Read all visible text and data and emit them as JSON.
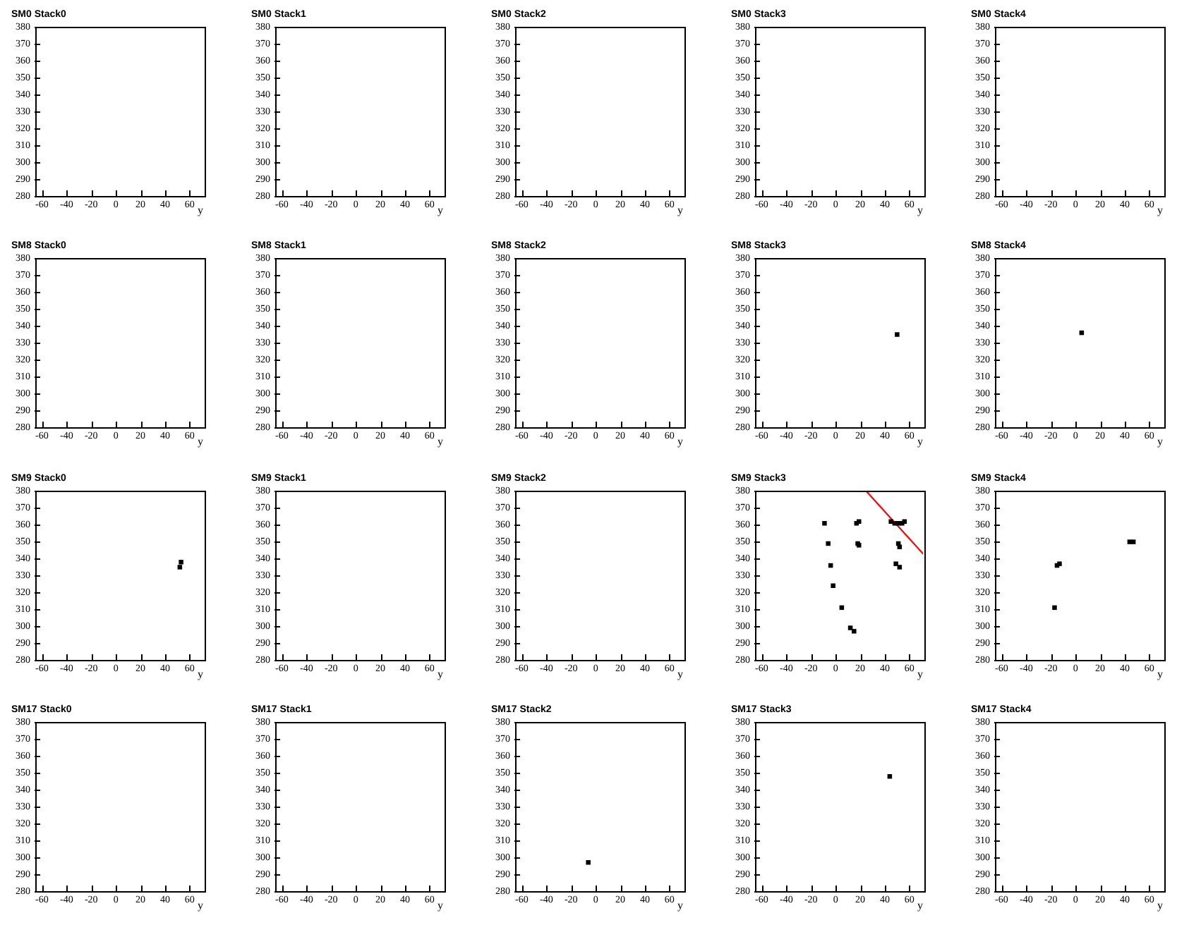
{
  "chart_data": [
    {
      "type": "scatter",
      "title": "SM0 Stack0",
      "xlabel": "y",
      "xlim": [
        -66,
        71
      ],
      "ylim": [
        280,
        380
      ],
      "xticks": [
        -60,
        -40,
        -20,
        0,
        20,
        40,
        60
      ],
      "yticks": [
        280,
        290,
        300,
        310,
        320,
        330,
        340,
        350,
        360,
        370,
        380
      ]
    },
    {
      "type": "scatter",
      "title": "SM0 Stack1",
      "xlabel": "y",
      "xlim": [
        -66,
        71
      ],
      "ylim": [
        280,
        380
      ],
      "xticks": [
        -60,
        -40,
        -20,
        0,
        20,
        40,
        60
      ],
      "yticks": [
        280,
        290,
        300,
        310,
        320,
        330,
        340,
        350,
        360,
        370,
        380
      ]
    },
    {
      "type": "scatter",
      "title": "SM0 Stack2",
      "xlabel": "y",
      "xlim": [
        -66,
        71
      ],
      "ylim": [
        280,
        380
      ],
      "xticks": [
        -60,
        -40,
        -20,
        0,
        20,
        40,
        60
      ],
      "yticks": [
        280,
        290,
        300,
        310,
        320,
        330,
        340,
        350,
        360,
        370,
        380
      ]
    },
    {
      "type": "scatter",
      "title": "SM0 Stack3",
      "xlabel": "y",
      "xlim": [
        -66,
        71
      ],
      "ylim": [
        280,
        380
      ],
      "xticks": [
        -60,
        -40,
        -20,
        0,
        20,
        40,
        60
      ],
      "yticks": [
        280,
        290,
        300,
        310,
        320,
        330,
        340,
        350,
        360,
        370,
        380
      ]
    },
    {
      "type": "scatter",
      "title": "SM0 Stack4",
      "xlabel": "y",
      "xlim": [
        -66,
        71
      ],
      "ylim": [
        280,
        380
      ],
      "xticks": [
        -60,
        -40,
        -20,
        0,
        20,
        40,
        60
      ],
      "yticks": [
        280,
        290,
        300,
        310,
        320,
        330,
        340,
        350,
        360,
        370,
        380
      ]
    },
    {
      "type": "scatter",
      "title": "SM8 Stack0",
      "xlabel": "y",
      "xlim": [
        -66,
        71
      ],
      "ylim": [
        280,
        380
      ],
      "xticks": [
        -60,
        -40,
        -20,
        0,
        20,
        40,
        60
      ],
      "yticks": [
        280,
        290,
        300,
        310,
        320,
        330,
        340,
        350,
        360,
        370,
        380
      ]
    },
    {
      "type": "scatter",
      "title": "SM8 Stack1",
      "xlabel": "y",
      "xlim": [
        -66,
        71
      ],
      "ylim": [
        280,
        380
      ],
      "xticks": [
        -60,
        -40,
        -20,
        0,
        20,
        40,
        60
      ],
      "yticks": [
        280,
        290,
        300,
        310,
        320,
        330,
        340,
        350,
        360,
        370,
        380
      ]
    },
    {
      "type": "scatter",
      "title": "SM8 Stack2",
      "xlabel": "y",
      "xlim": [
        -66,
        71
      ],
      "ylim": [
        280,
        380
      ],
      "xticks": [
        -60,
        -40,
        -20,
        0,
        20,
        40,
        60
      ],
      "yticks": [
        280,
        290,
        300,
        310,
        320,
        330,
        340,
        350,
        360,
        370,
        380
      ]
    },
    {
      "type": "scatter",
      "title": "SM8 Stack3",
      "xlabel": "y",
      "xlim": [
        -66,
        71
      ],
      "ylim": [
        280,
        380
      ],
      "xticks": [
        -60,
        -40,
        -20,
        0,
        20,
        40,
        60
      ],
      "yticks": [
        280,
        290,
        300,
        310,
        320,
        330,
        340,
        350,
        360,
        370,
        380
      ],
      "marker": "square",
      "color": "#000000",
      "x": [
        50
      ],
      "values": [
        335
      ]
    },
    {
      "type": "scatter",
      "title": "SM8 Stack4",
      "xlabel": "y",
      "xlim": [
        -66,
        71
      ],
      "ylim": [
        280,
        380
      ],
      "xticks": [
        -60,
        -40,
        -20,
        0,
        20,
        40,
        60
      ],
      "yticks": [
        280,
        290,
        300,
        310,
        320,
        330,
        340,
        350,
        360,
        370,
        380
      ],
      "marker": "square",
      "color": "#000000",
      "x": [
        5
      ],
      "values": [
        336
      ]
    },
    {
      "type": "scatter",
      "title": "SM9 Stack0",
      "xlabel": "y",
      "xlim": [
        -66,
        71
      ],
      "ylim": [
        280,
        380
      ],
      "xticks": [
        -60,
        -40,
        -20,
        0,
        20,
        40,
        60
      ],
      "yticks": [
        280,
        290,
        300,
        310,
        320,
        330,
        340,
        350,
        360,
        370,
        380
      ],
      "marker": "square",
      "color": "#000000",
      "x": [
        53,
        52
      ],
      "values": [
        338,
        335
      ]
    },
    {
      "type": "scatter",
      "title": "SM9 Stack1",
      "xlabel": "y",
      "xlim": [
        -66,
        71
      ],
      "ylim": [
        280,
        380
      ],
      "xticks": [
        -60,
        -40,
        -20,
        0,
        20,
        40,
        60
      ],
      "yticks": [
        280,
        290,
        300,
        310,
        320,
        330,
        340,
        350,
        360,
        370,
        380
      ]
    },
    {
      "type": "scatter",
      "title": "SM9 Stack2",
      "xlabel": "y",
      "xlim": [
        -66,
        71
      ],
      "ylim": [
        280,
        380
      ],
      "xticks": [
        -60,
        -40,
        -20,
        0,
        20,
        40,
        60
      ],
      "yticks": [
        280,
        290,
        300,
        310,
        320,
        330,
        340,
        350,
        360,
        370,
        380
      ]
    },
    {
      "type": "scatter",
      "title": "SM9 Stack3",
      "xlabel": "y",
      "xlim": [
        -66,
        71
      ],
      "ylim": [
        280,
        380
      ],
      "xticks": [
        -60,
        -40,
        -20,
        0,
        20,
        40,
        60
      ],
      "yticks": [
        280,
        290,
        300,
        310,
        320,
        330,
        340,
        350,
        360,
        370,
        380
      ],
      "marker": "square",
      "series": [
        {
          "color": "#000000",
          "x": [
            -9,
            -6,
            -4,
            -2,
            5,
            12,
            15,
            17,
            19,
            18,
            19,
            45,
            48,
            51,
            54,
            56,
            51,
            52,
            49,
            52
          ],
          "values": [
            361,
            349,
            336,
            324,
            311,
            299,
            297,
            361,
            362,
            349,
            348,
            362,
            361,
            361,
            361,
            362,
            349,
            347,
            337,
            335
          ]
        },
        {
          "type": "line",
          "marker": "none",
          "color": "#ff0000",
          "x": [
            25,
            71
          ],
          "values": [
            380,
            343
          ]
        }
      ]
    },
    {
      "type": "scatter",
      "title": "SM9 Stack4",
      "xlabel": "y",
      "xlim": [
        -66,
        71
      ],
      "ylim": [
        280,
        380
      ],
      "xticks": [
        -60,
        -40,
        -20,
        0,
        20,
        40,
        60
      ],
      "yticks": [
        280,
        290,
        300,
        310,
        320,
        330,
        340,
        350,
        360,
        370,
        380
      ],
      "marker": "square",
      "color": "#000000",
      "x": [
        -17,
        -15,
        -13,
        44,
        47
      ],
      "values": [
        311,
        336,
        337,
        350,
        350
      ]
    },
    {
      "type": "scatter",
      "title": "SM17 Stack0",
      "xlabel": "y",
      "xlim": [
        -66,
        71
      ],
      "ylim": [
        280,
        380
      ],
      "xticks": [
        -60,
        -40,
        -20,
        0,
        20,
        40,
        60
      ],
      "yticks": [
        280,
        290,
        300,
        310,
        320,
        330,
        340,
        350,
        360,
        370,
        380
      ]
    },
    {
      "type": "scatter",
      "title": "SM17 Stack1",
      "xlabel": "y",
      "xlim": [
        -66,
        71
      ],
      "ylim": [
        280,
        380
      ],
      "xticks": [
        -60,
        -40,
        -20,
        0,
        20,
        40,
        60
      ],
      "yticks": [
        280,
        290,
        300,
        310,
        320,
        330,
        340,
        350,
        360,
        370,
        380
      ]
    },
    {
      "type": "scatter",
      "title": "SM17 Stack2",
      "xlabel": "y",
      "xlim": [
        -66,
        71
      ],
      "ylim": [
        280,
        380
      ],
      "xticks": [
        -60,
        -40,
        -20,
        0,
        20,
        40,
        60
      ],
      "yticks": [
        280,
        290,
        300,
        310,
        320,
        330,
        340,
        350,
        360,
        370,
        380
      ],
      "marker": "square",
      "color": "#000000",
      "x": [
        -6
      ],
      "values": [
        297
      ]
    },
    {
      "type": "scatter",
      "title": "SM17 Stack3",
      "xlabel": "y",
      "xlim": [
        -66,
        71
      ],
      "ylim": [
        280,
        380
      ],
      "xticks": [
        -60,
        -40,
        -20,
        0,
        20,
        40,
        60
      ],
      "yticks": [
        280,
        290,
        300,
        310,
        320,
        330,
        340,
        350,
        360,
        370,
        380
      ],
      "marker": "square",
      "color": "#000000",
      "x": [
        44
      ],
      "values": [
        348
      ]
    },
    {
      "type": "scatter",
      "title": "SM17 Stack4",
      "xlabel": "y",
      "xlim": [
        -66,
        71
      ],
      "ylim": [
        280,
        380
      ],
      "xticks": [
        -60,
        -40,
        -20,
        0,
        20,
        40,
        60
      ],
      "yticks": [
        280,
        290,
        300,
        310,
        320,
        330,
        340,
        350,
        360,
        370,
        380
      ]
    }
  ]
}
